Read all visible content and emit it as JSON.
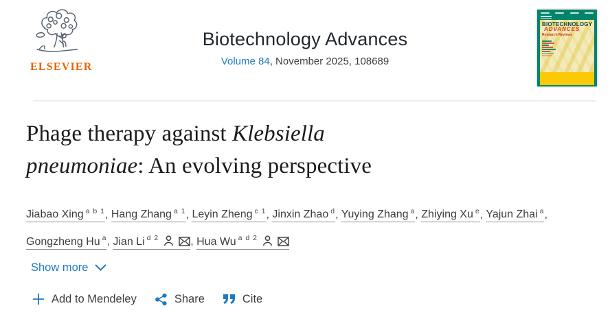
{
  "colors": {
    "link_blue": "#1f7ac0",
    "elsevier_orange": "#eb6300",
    "divider_gray": "#efefef",
    "cover_green": "#00846b",
    "cover_yellow": "#fbc905"
  },
  "header": {
    "publisher_wordmark": "ELSEVIER",
    "journal_name": "Biotechnology Advances",
    "volume_link": "Volume 84",
    "issue_info": ", November 2025, 108689",
    "cover": {
      "line1": "BIOTECHNOLOGY",
      "line2": "ADVANCES",
      "line3": "Research Reviews"
    }
  },
  "article": {
    "title_pre": "Phage therapy against ",
    "title_italic": "Klebsiella pneumoniae",
    "title_post": ": An evolving perspective"
  },
  "authors": [
    {
      "name": "Jiabao Xing",
      "sup": "a b 1",
      "icons": []
    },
    {
      "name": "Hang Zhang",
      "sup": "a 1",
      "icons": []
    },
    {
      "name": "Leyin Zheng",
      "sup": "c 1",
      "icons": []
    },
    {
      "name": "Jinxin Zhao",
      "sup": "d",
      "icons": []
    },
    {
      "name": "Yuying Zhang",
      "sup": "a",
      "icons": []
    },
    {
      "name": "Zhiying Xu",
      "sup": "e",
      "icons": []
    },
    {
      "name": "Yajun Zhai",
      "sup": "a",
      "icons": []
    },
    {
      "name": "Gongzheng Hu",
      "sup": "a",
      "icons": []
    },
    {
      "name": "Jian Li",
      "sup": "d 2",
      "icons": [
        "person",
        "email"
      ]
    },
    {
      "name": "Hua Wu",
      "sup": "a d 2",
      "icons": [
        "person",
        "email"
      ]
    }
  ],
  "show_more": {
    "label": "Show more"
  },
  "actions": {
    "mendeley": "Add to Mendeley",
    "share": "Share",
    "cite": "Cite"
  }
}
